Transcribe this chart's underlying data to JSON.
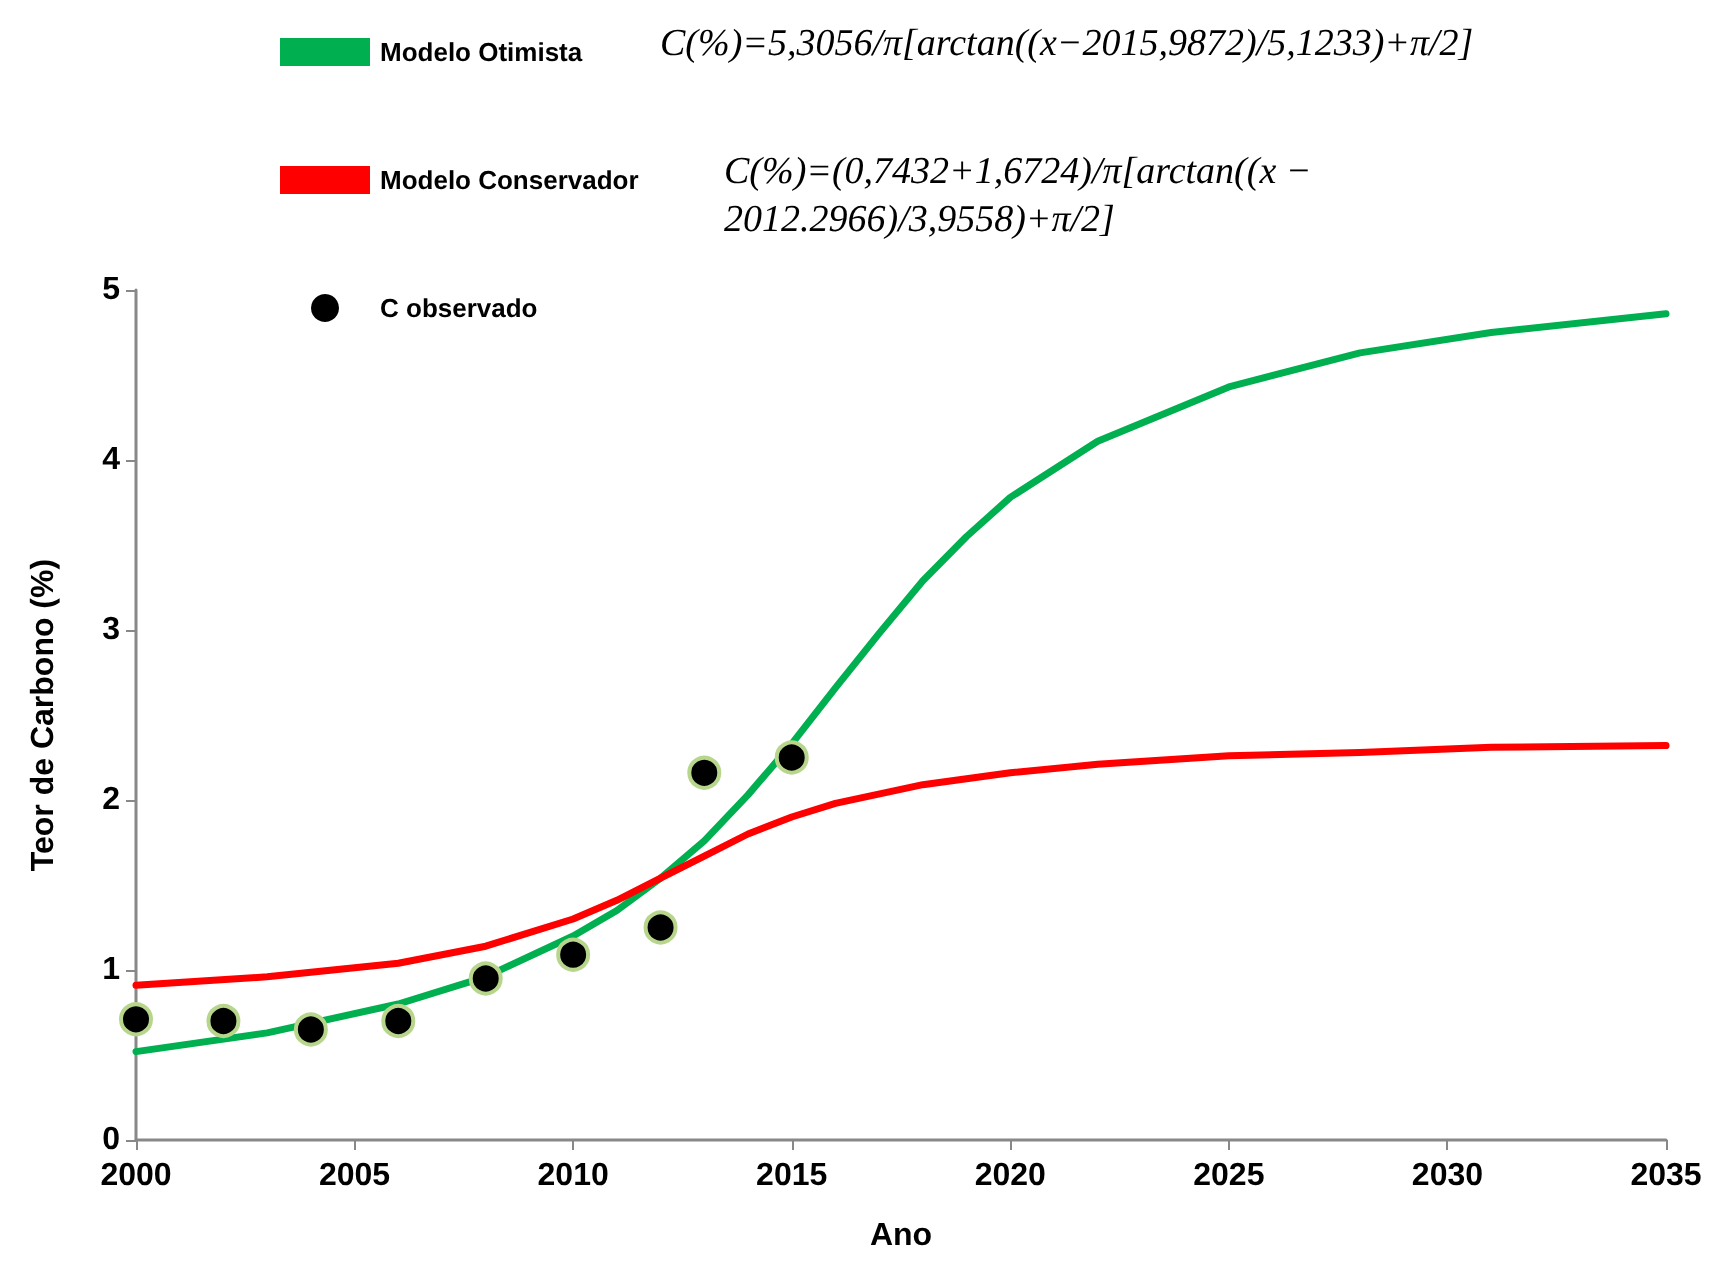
{
  "chart_data": {
    "type": "line",
    "xlabel": "Ano",
    "ylabel": "Teor de Carbono (%)",
    "xlim": [
      2000,
      2035
    ],
    "xticks": [
      2000,
      2005,
      2010,
      2015,
      2020,
      2025,
      2030,
      2035
    ],
    "ylim": [
      0,
      5
    ],
    "yticks": [
      0,
      1,
      2,
      3,
      4,
      5
    ],
    "grid": false,
    "legend": "top left",
    "line_style": "solid",
    "annotations": [
      "C(%)=5,3056/π[arctan((x−2015,9872)/5,1233)+π/2]",
      "C(%)=(0,7432+1,6724)/π[arctan((x −2012.2966)/3,9558)+π/2]"
    ],
    "series": [
      {
        "name": "Modelo Otimista",
        "marker": "none",
        "color": "#00b050",
        "x": [
          2000,
          2003,
          2006,
          2008,
          2010,
          2011,
          2012,
          2013,
          2014,
          2015,
          2016,
          2017,
          2018,
          2019,
          2020,
          2022,
          2025,
          2028,
          2031,
          2035
        ],
        "values": [
          0.52,
          0.63,
          0.8,
          0.96,
          1.2,
          1.35,
          1.54,
          1.76,
          2.03,
          2.33,
          2.66,
          2.98,
          3.29,
          3.55,
          3.78,
          4.11,
          4.43,
          4.63,
          4.75,
          4.86
        ]
      },
      {
        "name": "Modelo Conservador",
        "marker": "none",
        "color": "#ff0000",
        "x": [
          2000,
          2003,
          2006,
          2008,
          2010,
          2011,
          2012,
          2013,
          2014,
          2015,
          2016,
          2018,
          2020,
          2022,
          2025,
          2028,
          2031,
          2035
        ],
        "values": [
          0.91,
          0.96,
          1.04,
          1.14,
          1.3,
          1.41,
          1.54,
          1.67,
          1.8,
          1.9,
          1.98,
          2.09,
          2.16,
          2.21,
          2.26,
          2.28,
          2.31,
          2.32
        ]
      },
      {
        "name": "C observado",
        "type": "scatter",
        "marker": "circle",
        "color": "#000000",
        "x": [
          2000,
          2002,
          2004,
          2006,
          2008,
          2010,
          2012,
          2013,
          2015
        ],
        "values": [
          0.71,
          0.7,
          0.65,
          0.7,
          0.95,
          1.09,
          1.25,
          2.16,
          2.25
        ]
      }
    ]
  }
}
